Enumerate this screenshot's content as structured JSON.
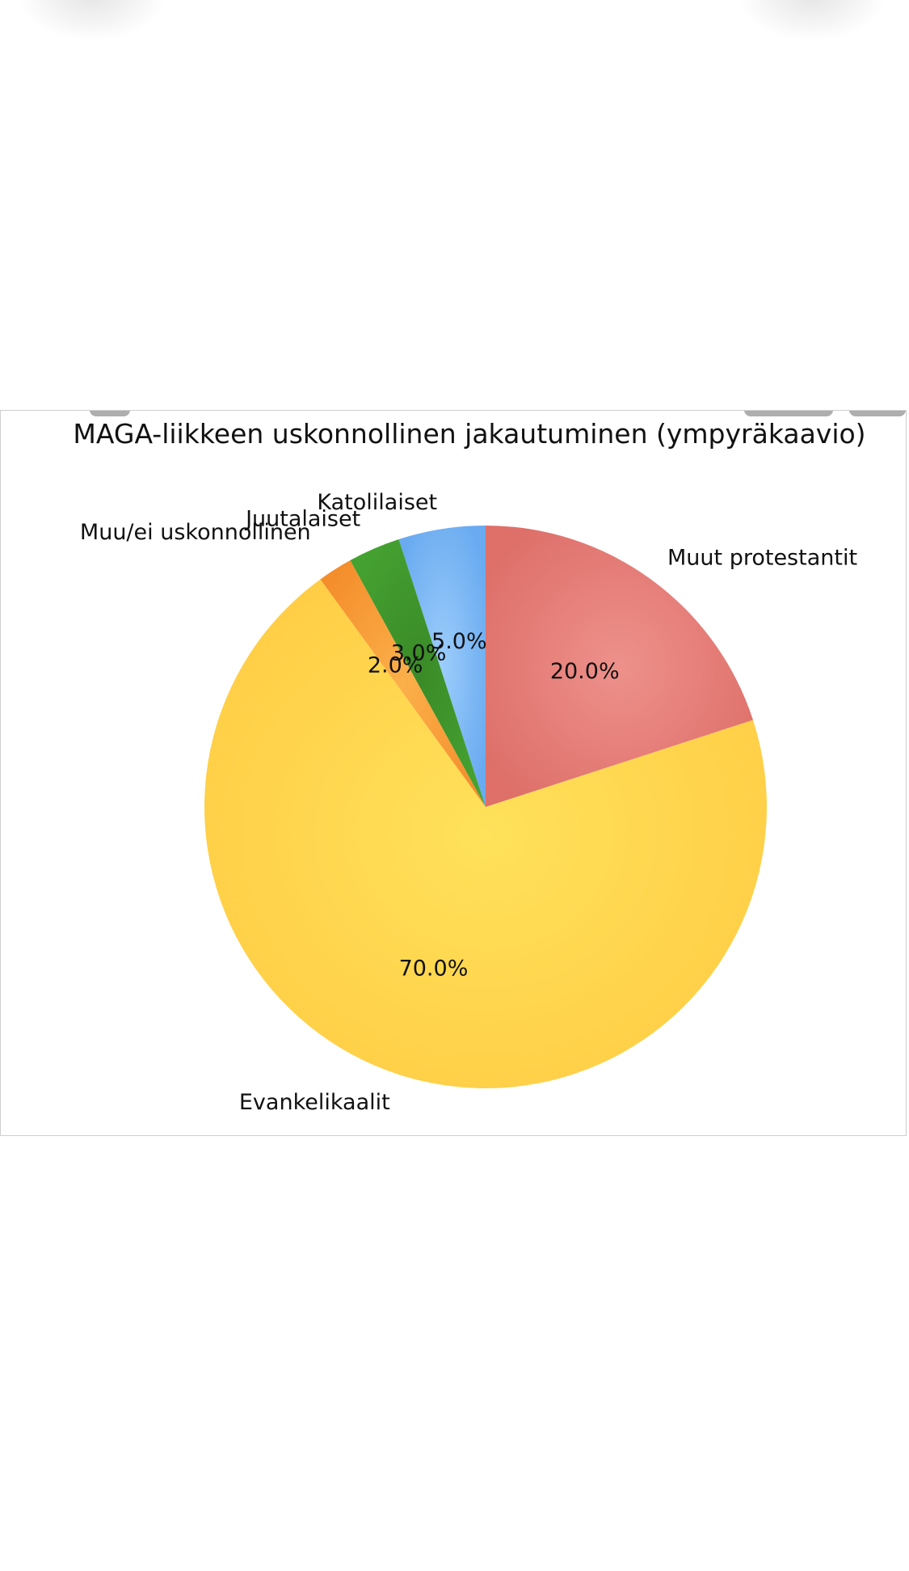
{
  "chart_data": {
    "type": "pie",
    "title": "MAGA-liikkeen uskonnollinen jakautuminen (ympyräkaavio)",
    "slices": [
      {
        "label": "Evankelikaalit",
        "value": 70.0,
        "pct_label": "70.0%",
        "color": "#ffd84a"
      },
      {
        "label": "Muut protestantit",
        "value": 20.0,
        "pct_label": "20.0%",
        "color": "#e57a74"
      },
      {
        "label": "Katolilaiset",
        "value": 5.0,
        "pct_label": "5.0%",
        "color": "#7db8f5"
      },
      {
        "label": "Juutalaiset",
        "value": 3.0,
        "pct_label": "3.0%",
        "color": "#3e982c"
      },
      {
        "label": "Muu/ei uskonnollinen",
        "value": 2.0,
        "pct_label": "2.0%",
        "color": "#f7a23a"
      }
    ],
    "legend": "none",
    "grid": false
  }
}
